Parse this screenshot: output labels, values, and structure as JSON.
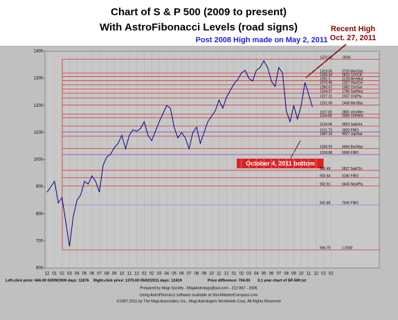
{
  "chart_data": {
    "type": "line",
    "title": "Chart of S & P 500 (2009 to present)",
    "subtitle": "With AstroFibonacci Levels (road signs)",
    "annotations": {
      "post_high": "Post 2008 High made on May 2, 2011",
      "recent_high_1": "Recent High",
      "recent_high_2": "Oct. 27, 2011",
      "bottom": "October 4, 2011 bottom"
    },
    "categories": [
      "12",
      null,
      "01",
      null,
      "02",
      null,
      "03",
      null,
      "04",
      null,
      "05",
      null,
      "06",
      null,
      "07",
      null,
      "08",
      null,
      "09",
      null,
      "10",
      null,
      "11",
      null,
      "12",
      null,
      "01",
      null,
      "02",
      null,
      "03",
      null,
      "04",
      null,
      "05",
      null,
      "06",
      null,
      "07",
      null,
      "08",
      null,
      "09",
      null,
      "10",
      null,
      "11",
      null,
      "12",
      null,
      "01",
      null,
      "02",
      null,
      "03",
      null,
      "04",
      null,
      "05",
      null,
      "06",
      null,
      "07",
      null,
      "08",
      null,
      "09",
      null,
      "10",
      null,
      "11",
      null,
      "12",
      null,
      "01",
      null,
      "02",
      null
    ],
    "series": [
      {
        "name": "SP-500",
        "color": "#000080",
        "values": [
          880,
          900,
          920,
          840,
          860,
          770,
          680,
          790,
          850,
          870,
          920,
          910,
          940,
          920,
          880,
          980,
          1010,
          1020,
          1045,
          1060,
          1090,
          1040,
          1090,
          1110,
          1105,
          1115,
          1140,
          1090,
          1070,
          1105,
          1140,
          1170,
          1200,
          1190,
          1120,
          1080,
          1100,
          1080,
          1040,
          1100,
          1120,
          1060,
          1100,
          1140,
          1160,
          1180,
          1220,
          1190,
          1230,
          1255,
          1280,
          1295,
          1320,
          1330,
          1300,
          1290,
          1330,
          1340,
          1365,
          1340,
          1290,
          1270,
          1340,
          1320,
          1180,
          1140,
          1200,
          1150,
          1200,
          1285,
          1240,
          1195,
          null,
          null,
          null,
          null,
          null,
          null
        ]
      }
    ],
    "levels": [
      {
        "value": 1370.58,
        "name": ".0000",
        "color": "#e03030"
      },
      {
        "value": 1319.56,
        "name": "0725 Mar/Sat",
        "color": "#e03030"
      },
      {
        "value": 1306.54,
        "name": "0810 Cer/Chi",
        "color": "#e03030"
      },
      {
        "value": 1291.2,
        "name": "1128 Mer/Mar",
        "color": "#e03030"
      },
      {
        "value": 1276.45,
        "name": "1327 Ven/Cer",
        "color": "#e03030"
      },
      {
        "value": 1260.67,
        "name": "1582 Cer/Sat",
        "color": "#e03030"
      },
      {
        "value": 1244.97,
        "name": "1786 Sat/Nep",
        "color": "#e03030"
      },
      {
        "value": 1227.21,
        "name": "2037 Chi/Plu",
        "color": "#e03030"
      },
      {
        "value": 1201.06,
        "name": "2408 Mer/Bar",
        "color": "#e03030"
      },
      {
        "value": 1167.82,
        "name": "2881 Ven/Mer",
        "color": "#e03030"
      },
      {
        "value": 1154.85,
        "name": "3065 Chi/Nep",
        "color": "#e03030"
      },
      {
        "value": 1124.04,
        "name": "3503 Sat/Ura",
        "color": "#e03030"
      },
      {
        "value": 1101.73,
        "name": "3820 FIBO",
        "color": "#9040c0"
      },
      {
        "value": 1087.16,
        "name": "4027 Jup/Sat",
        "color": "#e03030"
      },
      {
        "value": 1040.92,
        "name": "4684 Bar/Mar",
        "color": "#e03030"
      },
      {
        "value": 1018.88,
        "name": "5000 FIBO",
        "color": "#9040c0"
      },
      {
        "value": 960.49,
        "name": "5827 Sat/Chi",
        "color": "#e03030"
      },
      {
        "value": 933.64,
        "name": "6180 FIBO",
        "color": "#e03030"
      },
      {
        "value": 902.91,
        "name": "6645 Nep/Plu",
        "color": "#e03030"
      },
      {
        "value": 832.88,
        "name": "7640 FIBO",
        "color": "#8080e0"
      },
      {
        "value": 666.79,
        "name": "1.0000",
        "color": "#e03030"
      }
    ],
    "ylim": [
      600,
      1400
    ],
    "yticks": [
      600,
      700,
      800,
      900,
      1000,
      1100,
      1200,
      1300,
      1400
    ],
    "grid": true,
    "footer": {
      "left_click": "Left-click price: 666.00  03/09/2009  days: 11876",
      "right_click": "Right-click price: 1370.00  05/02/2011  days: 12419",
      "difference": "Price difference: 704.00",
      "file": "3.1 year chart of SP-500.txt",
      "prepared": "Prepared by Magi Society - MagiAstrology@aol.com - 212 867 - 2005",
      "using": "Using AstroFibonacci software available at StockMarketCompass.com",
      "copyright": "©1997-2011 by The Magi Associates, Inc., Magi Astrologers Worldwide Corp. All Rights Reserved"
    }
  }
}
